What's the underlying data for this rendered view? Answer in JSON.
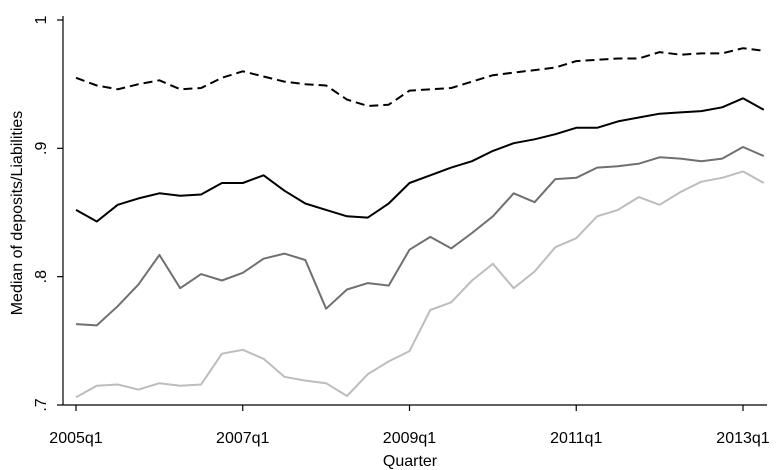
{
  "chart_data": {
    "type": "line",
    "title": "",
    "xlabel": "Quarter",
    "ylabel": "Median of deposits/Liabilities",
    "xlim": [
      0,
      33
    ],
    "ylim": [
      0.7,
      1.0
    ],
    "grid": false,
    "legend": "none",
    "x_ticks": [
      {
        "index": 0,
        "label": "2005q1"
      },
      {
        "index": 8,
        "label": "2007q1"
      },
      {
        "index": 16,
        "label": "2009q1"
      },
      {
        "index": 24,
        "label": "2011q1"
      },
      {
        "index": 32,
        "label": "2013q1"
      }
    ],
    "y_ticks": [
      {
        "value": 0.7,
        "label": ".7"
      },
      {
        "value": 0.8,
        "label": ".8"
      },
      {
        "value": 0.9,
        "label": ".9"
      },
      {
        "value": 1.0,
        "label": "1"
      }
    ],
    "x": [
      "2005q1",
      "2005q2",
      "2005q3",
      "2005q4",
      "2006q1",
      "2006q2",
      "2006q3",
      "2006q4",
      "2007q1",
      "2007q2",
      "2007q3",
      "2007q4",
      "2008q1",
      "2008q2",
      "2008q3",
      "2008q4",
      "2009q1",
      "2009q2",
      "2009q3",
      "2009q4",
      "2010q1",
      "2010q2",
      "2010q3",
      "2010q4",
      "2011q1",
      "2011q2",
      "2011q3",
      "2011q4",
      "2012q1",
      "2012q2",
      "2012q3",
      "2012q4",
      "2013q1",
      "2013q2"
    ],
    "series": [
      {
        "color": "#000000",
        "dash": "dashed",
        "values": [
          0.955,
          0.949,
          0.946,
          0.95,
          0.953,
          0.946,
          0.947,
          0.955,
          0.96,
          0.956,
          0.952,
          0.95,
          0.949,
          0.938,
          0.933,
          0.934,
          0.945,
          0.946,
          0.947,
          0.952,
          0.957,
          0.959,
          0.961,
          0.963,
          0.968,
          0.969,
          0.97,
          0.97,
          0.975,
          0.973,
          0.974,
          0.974,
          0.978,
          0.976
        ]
      },
      {
        "color": "#000000",
        "dash": "solid",
        "values": [
          0.852,
          0.843,
          0.856,
          0.861,
          0.865,
          0.863,
          0.864,
          0.873,
          0.873,
          0.879,
          0.867,
          0.857,
          0.852,
          0.847,
          0.846,
          0.857,
          0.873,
          0.879,
          0.885,
          0.89,
          0.898,
          0.904,
          0.907,
          0.911,
          0.916,
          0.916,
          0.921,
          0.924,
          0.927,
          0.928,
          0.929,
          0.932,
          0.939,
          0.93
        ]
      },
      {
        "color": "#707070",
        "dash": "solid",
        "values": [
          0.763,
          0.762,
          0.777,
          0.794,
          0.817,
          0.791,
          0.802,
          0.797,
          0.803,
          0.814,
          0.818,
          0.813,
          0.775,
          0.79,
          0.795,
          0.793,
          0.821,
          0.831,
          0.822,
          0.834,
          0.847,
          0.865,
          0.858,
          0.876,
          0.877,
          0.885,
          0.886,
          0.888,
          0.893,
          0.892,
          0.89,
          0.892,
          0.901,
          0.894
        ]
      },
      {
        "color": "#bdbdbd",
        "dash": "solid",
        "values": [
          0.706,
          0.715,
          0.716,
          0.712,
          0.717,
          0.715,
          0.716,
          0.74,
          0.743,
          0.736,
          0.722,
          0.719,
          0.717,
          0.707,
          0.724,
          0.734,
          0.742,
          0.774,
          0.78,
          0.797,
          0.81,
          0.791,
          0.804,
          0.823,
          0.83,
          0.847,
          0.852,
          0.862,
          0.856,
          0.866,
          0.874,
          0.877,
          0.882,
          0.873
        ]
      }
    ]
  }
}
